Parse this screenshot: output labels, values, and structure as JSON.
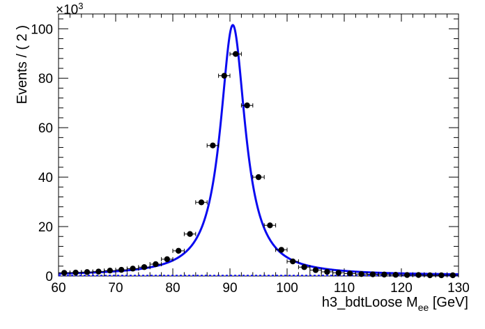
{
  "chart_data": {
    "type": "scatter",
    "title": "",
    "xlabel_main": "h3_bdtLoose  M",
    "xlabel_sub": "ee",
    "xlabel_unit": " [GeV]",
    "ylabel": "Events / ( 2 )",
    "y_multiplier": "×10",
    "y_multiplier_exp": "3",
    "xlim": [
      60,
      130
    ],
    "ylim": [
      0,
      106
    ],
    "x_ticks": [
      "60",
      "70",
      "80",
      "90",
      "100",
      "110",
      "120",
      "130"
    ],
    "y_ticks": [
      "0",
      "20",
      "40",
      "60",
      "80",
      "100"
    ],
    "grid": false,
    "series": [
      {
        "kind": "points-with-xerror",
        "color": "#000000",
        "x": [
          61,
          63,
          65,
          67,
          69,
          71,
          73,
          75,
          77,
          79,
          81,
          83,
          85,
          87,
          89,
          91,
          93,
          95,
          97,
          99,
          101,
          103,
          105,
          107,
          109,
          111,
          113,
          115,
          117,
          119,
          121,
          123,
          125,
          127,
          129
        ],
        "y": [
          1.3,
          1.4,
          1.6,
          1.8,
          2.2,
          2.5,
          3.0,
          3.6,
          4.8,
          6.8,
          10.2,
          17.0,
          29.8,
          52.8,
          81.0,
          89.8,
          69.0,
          40.0,
          20.5,
          10.6,
          5.9,
          3.6,
          2.4,
          1.7,
          1.3,
          1.0,
          0.8,
          0.7,
          0.6,
          0.5,
          0.4,
          0.4,
          0.3,
          0.3,
          0.3
        ],
        "xerr": 1
      },
      {
        "kind": "fit-curve",
        "color": "#0a0af0",
        "model": "breit-wigner",
        "peak_x": 90.5,
        "peak_y": 101.5,
        "width": 5.3,
        "background": 0.25
      },
      {
        "kind": "background-line",
        "color": "#0a0af0",
        "y": 0.2
      }
    ]
  }
}
